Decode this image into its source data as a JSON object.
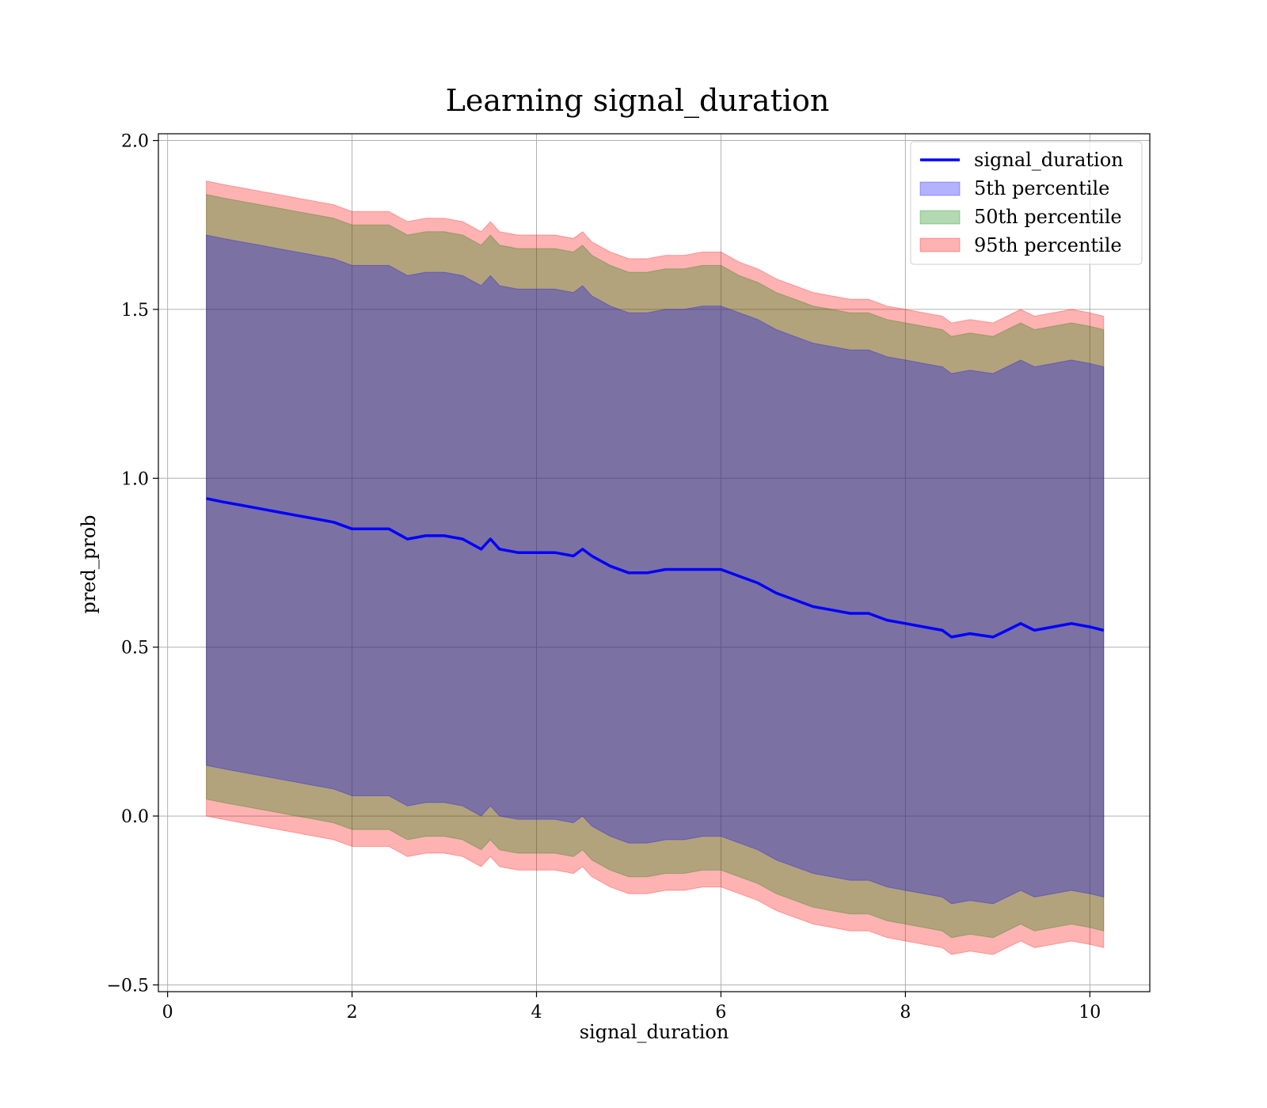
{
  "chart_data": {
    "type": "area",
    "title": "Learning signal_duration",
    "xlabel": "signal_duration",
    "ylabel": "pred_prob",
    "xlim": [
      -0.1,
      10.65
    ],
    "ylim": [
      -0.52,
      2.02
    ],
    "x_ticks": [
      0,
      2,
      4,
      6,
      8,
      10
    ],
    "x_tick_labels": [
      "0",
      "2",
      "4",
      "6",
      "8",
      "10"
    ],
    "y_ticks": [
      -0.5,
      0.0,
      0.5,
      1.0,
      1.5,
      2.0
    ],
    "y_tick_labels": [
      "−0.5",
      "0.0",
      "0.5",
      "1.0",
      "1.5",
      "2.0"
    ],
    "grid": true,
    "legend_position": "top-right",
    "x": [
      0.42,
      0.6,
      0.8,
      1.0,
      1.2,
      1.4,
      1.6,
      1.8,
      2.0,
      2.2,
      2.4,
      2.6,
      2.8,
      3.0,
      3.2,
      3.4,
      3.5,
      3.6,
      3.8,
      4.0,
      4.2,
      4.4,
      4.5,
      4.6,
      4.8,
      5.0,
      5.2,
      5.4,
      5.6,
      5.8,
      6.0,
      6.2,
      6.4,
      6.6,
      6.8,
      7.0,
      7.2,
      7.4,
      7.6,
      7.8,
      8.0,
      8.2,
      8.4,
      8.5,
      8.7,
      8.95,
      9.1,
      9.25,
      9.4,
      9.6,
      9.8,
      10.0,
      10.15
    ],
    "series": [
      {
        "name": "signal_duration",
        "kind": "line",
        "color": "#0000ff",
        "values": [
          0.94,
          0.93,
          0.92,
          0.91,
          0.9,
          0.89,
          0.88,
          0.87,
          0.85,
          0.85,
          0.85,
          0.82,
          0.83,
          0.83,
          0.82,
          0.79,
          0.82,
          0.79,
          0.78,
          0.78,
          0.78,
          0.77,
          0.79,
          0.77,
          0.74,
          0.72,
          0.72,
          0.73,
          0.73,
          0.73,
          0.73,
          0.71,
          0.69,
          0.66,
          0.64,
          0.62,
          0.61,
          0.6,
          0.6,
          0.58,
          0.57,
          0.56,
          0.55,
          0.53,
          0.54,
          0.53,
          0.55,
          0.57,
          0.55,
          0.56,
          0.57,
          0.56,
          0.55
        ]
      },
      {
        "name": "5th percentile",
        "kind": "band",
        "color": "#0000ff",
        "lower": [
          0.15,
          0.14,
          0.13,
          0.12,
          0.11,
          0.1,
          0.09,
          0.08,
          0.06,
          0.06,
          0.06,
          0.03,
          0.04,
          0.04,
          0.03,
          0.0,
          0.03,
          0.0,
          -0.01,
          -0.01,
          -0.01,
          -0.02,
          0.0,
          -0.03,
          -0.06,
          -0.08,
          -0.08,
          -0.07,
          -0.07,
          -0.06,
          -0.06,
          -0.08,
          -0.1,
          -0.13,
          -0.15,
          -0.17,
          -0.18,
          -0.19,
          -0.19,
          -0.21,
          -0.22,
          -0.23,
          -0.24,
          -0.26,
          -0.25,
          -0.26,
          -0.24,
          -0.22,
          -0.24,
          -0.23,
          -0.22,
          -0.23,
          -0.24
        ],
        "upper": [
          1.72,
          1.71,
          1.7,
          1.69,
          1.68,
          1.67,
          1.66,
          1.65,
          1.63,
          1.63,
          1.63,
          1.6,
          1.61,
          1.61,
          1.6,
          1.57,
          1.6,
          1.57,
          1.56,
          1.56,
          1.56,
          1.55,
          1.57,
          1.54,
          1.51,
          1.49,
          1.49,
          1.5,
          1.5,
          1.51,
          1.51,
          1.49,
          1.47,
          1.44,
          1.42,
          1.4,
          1.39,
          1.38,
          1.38,
          1.36,
          1.35,
          1.34,
          1.33,
          1.31,
          1.32,
          1.31,
          1.33,
          1.35,
          1.33,
          1.34,
          1.35,
          1.34,
          1.33
        ]
      },
      {
        "name": "50th percentile",
        "kind": "band",
        "color": "#008000",
        "lower": [
          0.05,
          0.04,
          0.03,
          0.02,
          0.01,
          0.0,
          -0.01,
          -0.02,
          -0.04,
          -0.04,
          -0.04,
          -0.07,
          -0.06,
          -0.06,
          -0.07,
          -0.1,
          -0.07,
          -0.1,
          -0.11,
          -0.11,
          -0.11,
          -0.12,
          -0.1,
          -0.13,
          -0.16,
          -0.18,
          -0.18,
          -0.17,
          -0.17,
          -0.16,
          -0.16,
          -0.18,
          -0.2,
          -0.23,
          -0.25,
          -0.27,
          -0.28,
          -0.29,
          -0.29,
          -0.31,
          -0.32,
          -0.33,
          -0.34,
          -0.36,
          -0.35,
          -0.36,
          -0.34,
          -0.32,
          -0.34,
          -0.33,
          -0.32,
          -0.33,
          -0.34
        ],
        "upper": [
          1.84,
          1.83,
          1.82,
          1.81,
          1.8,
          1.79,
          1.78,
          1.77,
          1.75,
          1.75,
          1.75,
          1.72,
          1.73,
          1.73,
          1.72,
          1.69,
          1.72,
          1.69,
          1.68,
          1.68,
          1.68,
          1.67,
          1.69,
          1.66,
          1.63,
          1.61,
          1.61,
          1.62,
          1.62,
          1.63,
          1.63,
          1.6,
          1.58,
          1.55,
          1.53,
          1.51,
          1.5,
          1.49,
          1.49,
          1.47,
          1.46,
          1.45,
          1.44,
          1.42,
          1.43,
          1.42,
          1.44,
          1.46,
          1.44,
          1.45,
          1.46,
          1.45,
          1.44
        ]
      },
      {
        "name": "95th percentile",
        "kind": "band",
        "color": "#ff0000",
        "lower": [
          0.0,
          -0.01,
          -0.02,
          -0.03,
          -0.04,
          -0.05,
          -0.06,
          -0.07,
          -0.09,
          -0.09,
          -0.09,
          -0.12,
          -0.11,
          -0.11,
          -0.12,
          -0.15,
          -0.12,
          -0.15,
          -0.16,
          -0.16,
          -0.16,
          -0.17,
          -0.15,
          -0.18,
          -0.21,
          -0.23,
          -0.23,
          -0.22,
          -0.22,
          -0.21,
          -0.21,
          -0.23,
          -0.25,
          -0.28,
          -0.3,
          -0.32,
          -0.33,
          -0.34,
          -0.34,
          -0.36,
          -0.37,
          -0.38,
          -0.39,
          -0.41,
          -0.4,
          -0.41,
          -0.39,
          -0.37,
          -0.39,
          -0.38,
          -0.37,
          -0.38,
          -0.39
        ],
        "upper": [
          1.88,
          1.87,
          1.86,
          1.85,
          1.84,
          1.83,
          1.82,
          1.81,
          1.79,
          1.79,
          1.79,
          1.76,
          1.77,
          1.77,
          1.76,
          1.73,
          1.76,
          1.73,
          1.72,
          1.72,
          1.72,
          1.71,
          1.73,
          1.7,
          1.67,
          1.65,
          1.65,
          1.66,
          1.66,
          1.67,
          1.67,
          1.64,
          1.62,
          1.59,
          1.57,
          1.55,
          1.54,
          1.53,
          1.53,
          1.51,
          1.5,
          1.49,
          1.48,
          1.46,
          1.47,
          1.46,
          1.48,
          1.5,
          1.48,
          1.49,
          1.5,
          1.49,
          1.48
        ]
      }
    ]
  }
}
